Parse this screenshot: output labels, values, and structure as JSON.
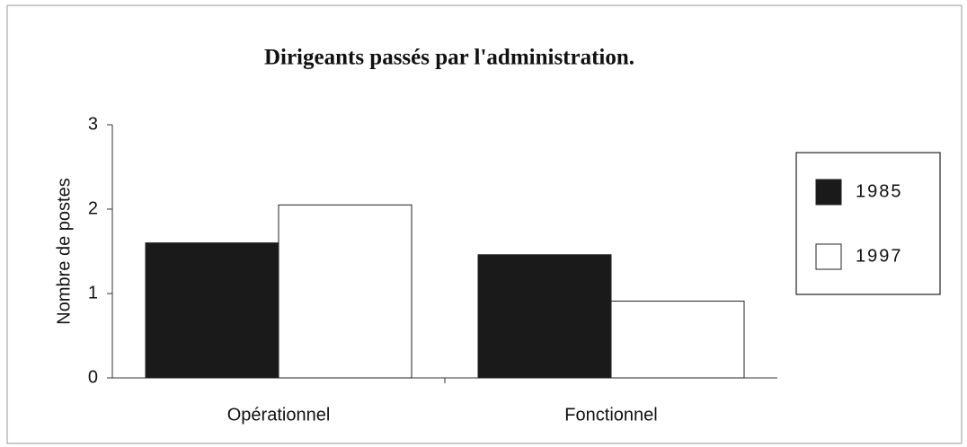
{
  "chart_data": {
    "type": "bar",
    "title": "Dirigeants passés par l'administration.",
    "y_label": "Nombre de postes",
    "categories": [
      "Opérationnel",
      "Fonctionnel"
    ],
    "series": [
      {
        "name": "1985",
        "color": "#1a1a1a",
        "values": [
          1.6,
          1.46
        ]
      },
      {
        "name": "1997",
        "color": "#ffffff",
        "values": [
          2.05,
          0.91
        ]
      }
    ],
    "ylim": [
      0,
      3
    ],
    "yticks": [
      0,
      1,
      2,
      3
    ],
    "legend": "right"
  }
}
